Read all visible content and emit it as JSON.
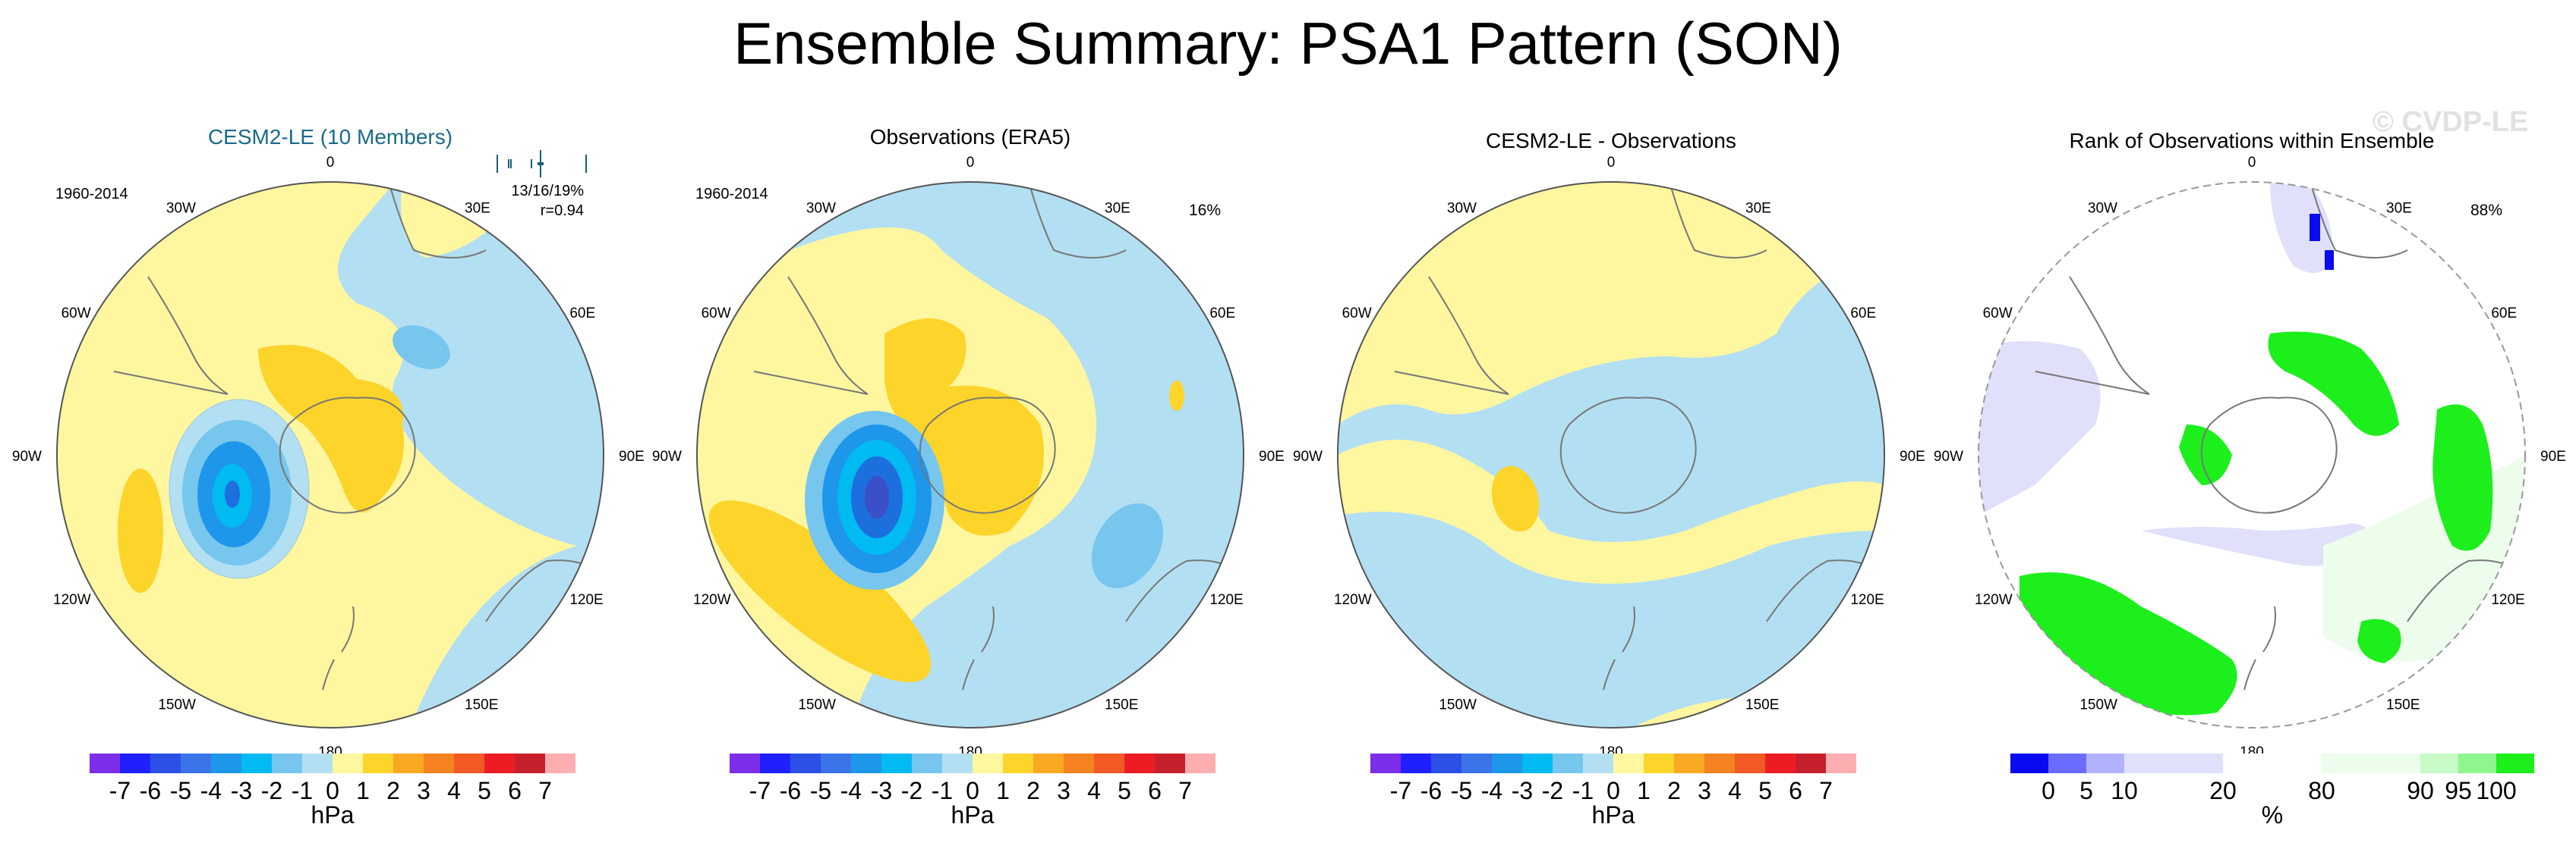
{
  "title": "Ensemble Summary: PSA1 Pattern (SON)",
  "watermark": "© CVDP-LE",
  "colors": {
    "neg": [
      "#7d2ee8",
      "#2020ff",
      "#2c4fe6",
      "#3a74e8",
      "#1e96ea",
      "#00baf2",
      "#77c6ee",
      "#b3dff3"
    ],
    "pos": [
      "#fff6a0",
      "#fdd42a",
      "#f9a921",
      "#f58220",
      "#f15a22",
      "#ed1c24",
      "#c6202c",
      "#fcaeb1"
    ],
    "rank": [
      "#0a0af0",
      "#6b6bff",
      "#b1b1ff",
      "#e0e0fb",
      "#ffffff",
      "#ecfdec",
      "#c7fac7",
      "#8ff58f",
      "#1cef1c"
    ],
    "ocean": "#b3dff3",
    "land": "#fff6a0",
    "coast": "#777777"
  },
  "chart_data": [
    {
      "type": "heatmap",
      "title": "CESM2-LE (10 Members)",
      "period": "1960-2014",
      "stats_line": "13/16/19%",
      "corr_line": "r=0.94",
      "units": "hPa",
      "contour_levels": [
        -7,
        -6,
        -5,
        -4,
        -3,
        -2,
        -1,
        0,
        1,
        2,
        3,
        4,
        5,
        6,
        7
      ],
      "lon_labels": [
        "0",
        "30E",
        "60E",
        "90E",
        "120E",
        "150E",
        "180",
        "150W",
        "120W",
        "90W",
        "60W",
        "30W"
      ]
    },
    {
      "type": "heatmap",
      "title": "Observations (ERA5)",
      "period": "1960-2014",
      "stats_line": "16%",
      "units": "hPa",
      "contour_levels": [
        -7,
        -6,
        -5,
        -4,
        -3,
        -2,
        -1,
        0,
        1,
        2,
        3,
        4,
        5,
        6,
        7
      ],
      "lon_labels": [
        "0",
        "30E",
        "60E",
        "90E",
        "120E",
        "150E",
        "180",
        "150W",
        "120W",
        "90W",
        "60W",
        "30W"
      ]
    },
    {
      "type": "heatmap",
      "title": "CESM2-LE - Observations",
      "units": "hPa",
      "contour_levels": [
        -7,
        -6,
        -5,
        -4,
        -3,
        -2,
        -1,
        0,
        1,
        2,
        3,
        4,
        5,
        6,
        7
      ],
      "lon_labels": [
        "0",
        "30E",
        "60E",
        "90E",
        "120E",
        "150E",
        "180",
        "150W",
        "120W",
        "90W",
        "60W",
        "30W"
      ]
    },
    {
      "type": "heatmap",
      "title": "Rank of Observations within Ensemble",
      "stats_line": "88%",
      "units": "%",
      "rank_levels": [
        0,
        5,
        10,
        20,
        80,
        90,
        95,
        100
      ],
      "lon_labels": [
        "0",
        "30E",
        "60E",
        "90E",
        "120E",
        "150E",
        "180",
        "150W",
        "120W",
        "90W",
        "60W",
        "30W"
      ]
    }
  ]
}
